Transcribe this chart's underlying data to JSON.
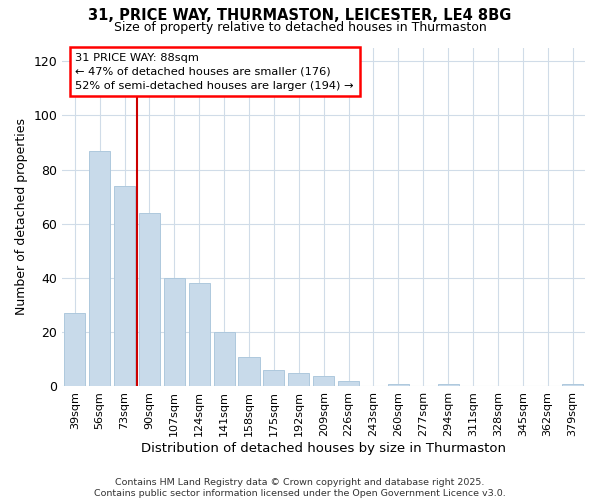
{
  "title_line1": "31, PRICE WAY, THURMASTON, LEICESTER, LE4 8BG",
  "title_line2": "Size of property relative to detached houses in Thurmaston",
  "xlabel": "Distribution of detached houses by size in Thurmaston",
  "ylabel": "Number of detached properties",
  "bar_color": "#c8daea",
  "bar_edgecolor": "#aec8dd",
  "categories": [
    "39sqm",
    "56sqm",
    "73sqm",
    "90sqm",
    "107sqm",
    "124sqm",
    "141sqm",
    "158sqm",
    "175sqm",
    "192sqm",
    "209sqm",
    "226sqm",
    "243sqm",
    "260sqm",
    "277sqm",
    "294sqm",
    "311sqm",
    "328sqm",
    "345sqm",
    "362sqm",
    "379sqm"
  ],
  "values": [
    27,
    87,
    74,
    64,
    40,
    38,
    20,
    11,
    6,
    5,
    4,
    2,
    0,
    1,
    0,
    1,
    0,
    0,
    0,
    0,
    1
  ],
  "ylim": [
    0,
    125
  ],
  "yticks": [
    0,
    20,
    40,
    60,
    80,
    100,
    120
  ],
  "vline_index": 2.5,
  "vline_color": "#cc0000",
  "annotation_title": "31 PRICE WAY: 88sqm",
  "annotation_line1": "← 47% of detached houses are smaller (176)",
  "annotation_line2": "52% of semi-detached houses are larger (194) →",
  "footer_line1": "Contains HM Land Registry data © Crown copyright and database right 2025.",
  "footer_line2": "Contains public sector information licensed under the Open Government Licence v3.0.",
  "background_color": "#ffffff",
  "grid_color": "#d0dce8"
}
